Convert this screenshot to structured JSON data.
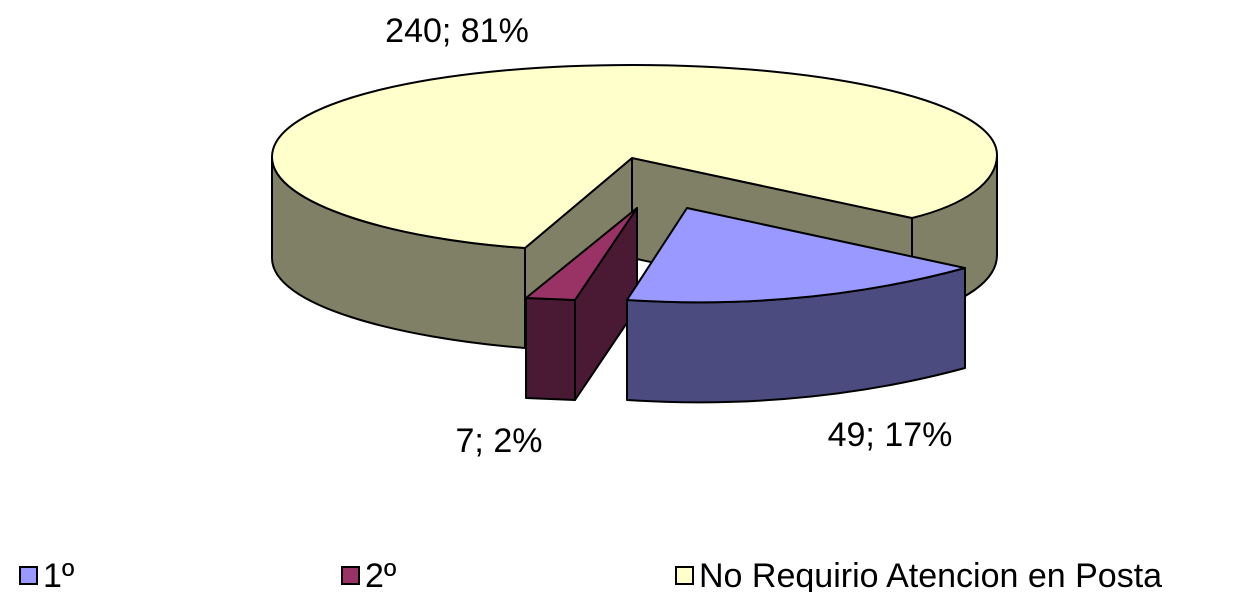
{
  "chart_data": {
    "type": "pie",
    "style": "3d-exploded",
    "slices": [
      {
        "key": "primero",
        "label": "1º",
        "value": 49,
        "percent": 17,
        "data_label": "49; 17%",
        "color": "#9999ff",
        "side_color": "#4b4b7f"
      },
      {
        "key": "segundo",
        "label": "2º",
        "value": 7,
        "percent": 2,
        "data_label": "7; 2%",
        "color": "#993366",
        "side_color": "#4a1a34"
      },
      {
        "key": "no_requirio",
        "label": "No Requirio Atencion en Posta",
        "value": 240,
        "percent": 81,
        "data_label": "240; 81%",
        "color": "#ffffcc",
        "side_color": "#808066"
      }
    ],
    "legend": {
      "position": "bottom",
      "entries": [
        "1º",
        "2º",
        "No Requirio Atencion en Posta"
      ]
    },
    "title": "",
    "grid": false
  }
}
